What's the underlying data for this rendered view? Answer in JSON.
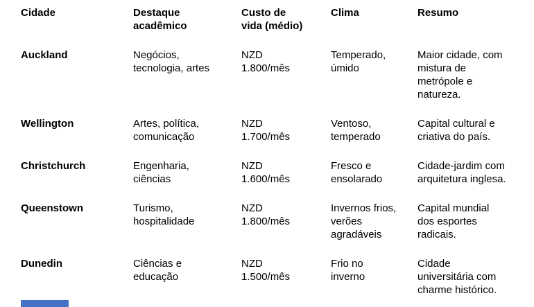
{
  "page": {
    "background": "#ffffff",
    "text_color": "#000000"
  },
  "table": {
    "headers": [
      "Cidade",
      "Destaque\nacadêmico",
      "Custo de\nvida (médio)",
      "Clima",
      "Resumo"
    ],
    "rows": [
      {
        "cidade": "Auckland",
        "destaque": "Negócios,\ntecnologia, artes",
        "custo": "NZD\n1.800/mês",
        "clima": "Temperado,\númido",
        "resumo": "Maior cidade, com\nmistura de\nmetrópole e\nnatureza."
      },
      {
        "cidade": "Wellington",
        "destaque": "Artes, política,\ncomunicação",
        "custo": "NZD\n1.700/mês",
        "clima": "Ventoso,\ntemperado",
        "resumo": "Capital cultural e\ncriativa do país."
      },
      {
        "cidade": "Christchurch",
        "destaque": "Engenharia,\nciências",
        "custo": "NZD\n1.600/mês",
        "clima": "Fresco e\nensolarado",
        "resumo": "Cidade-jardim com\narquitetura inglesa."
      },
      {
        "cidade": "Queenstown",
        "destaque": "Turismo,\nhospitalidade",
        "custo": "NZD\n1.800/mês",
        "clima": "Invernos frios,\nverões\nagradáveis",
        "resumo": "Capital mundial\ndos esportes\nradicais."
      },
      {
        "cidade": "Dunedin",
        "destaque": "Ciências e\neducação",
        "custo": "NZD\n1.500/mês",
        "clima": "Frio no\ninverno",
        "resumo": "Cidade\nuniversitária com\ncharme histórico."
      }
    ]
  },
  "fragments": {
    "bottom_left_bar_color": "#4472c4"
  }
}
